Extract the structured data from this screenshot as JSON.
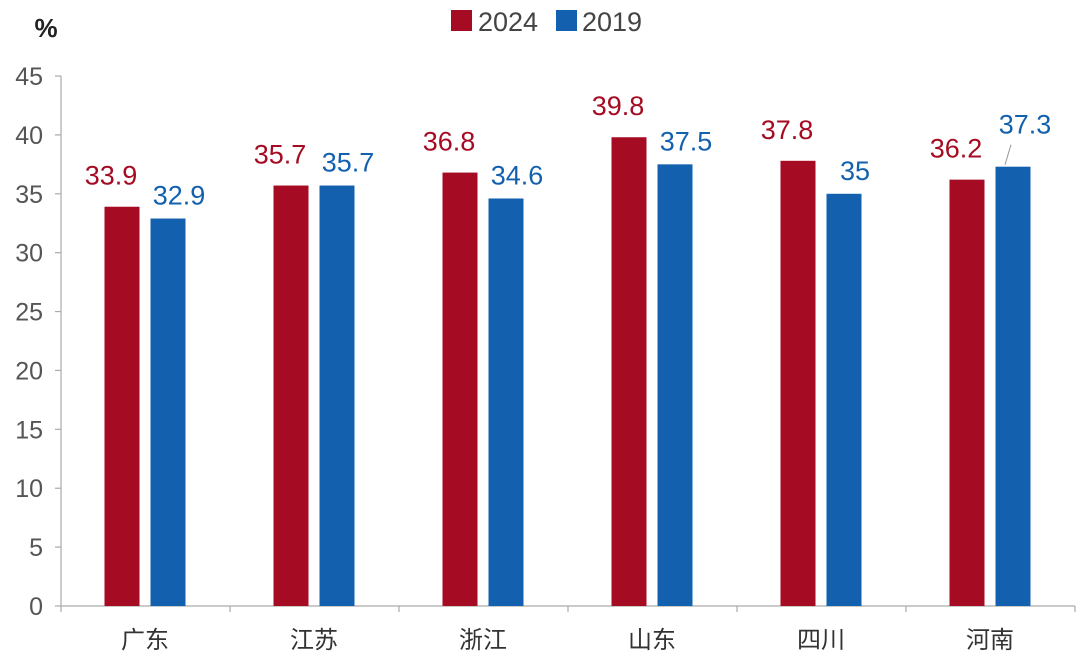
{
  "chart_data": {
    "type": "bar",
    "title": "",
    "xlabel": "",
    "ylabel": "%",
    "ylim": [
      0,
      45
    ],
    "yticks": [
      0,
      5,
      10,
      15,
      20,
      25,
      30,
      35,
      40,
      45
    ],
    "grid": false,
    "legend_position": "top-center",
    "categories": [
      "广东",
      "江苏",
      "浙江",
      "山东",
      "四川",
      "河南"
    ],
    "series": [
      {
        "name": "2024",
        "color": "#A50B22",
        "values": [
          33.9,
          35.7,
          36.8,
          39.8,
          37.8,
          36.2
        ],
        "labels": [
          "33.9",
          "35.7",
          "36.8",
          "39.8",
          "37.8",
          "36.2"
        ]
      },
      {
        "name": "2019",
        "color": "#1361AE",
        "values": [
          32.9,
          35.7,
          34.6,
          37.5,
          35,
          37.3
        ],
        "labels": [
          "32.9",
          "35.7",
          "34.6",
          "37.5",
          "35",
          "37.3"
        ]
      }
    ]
  }
}
